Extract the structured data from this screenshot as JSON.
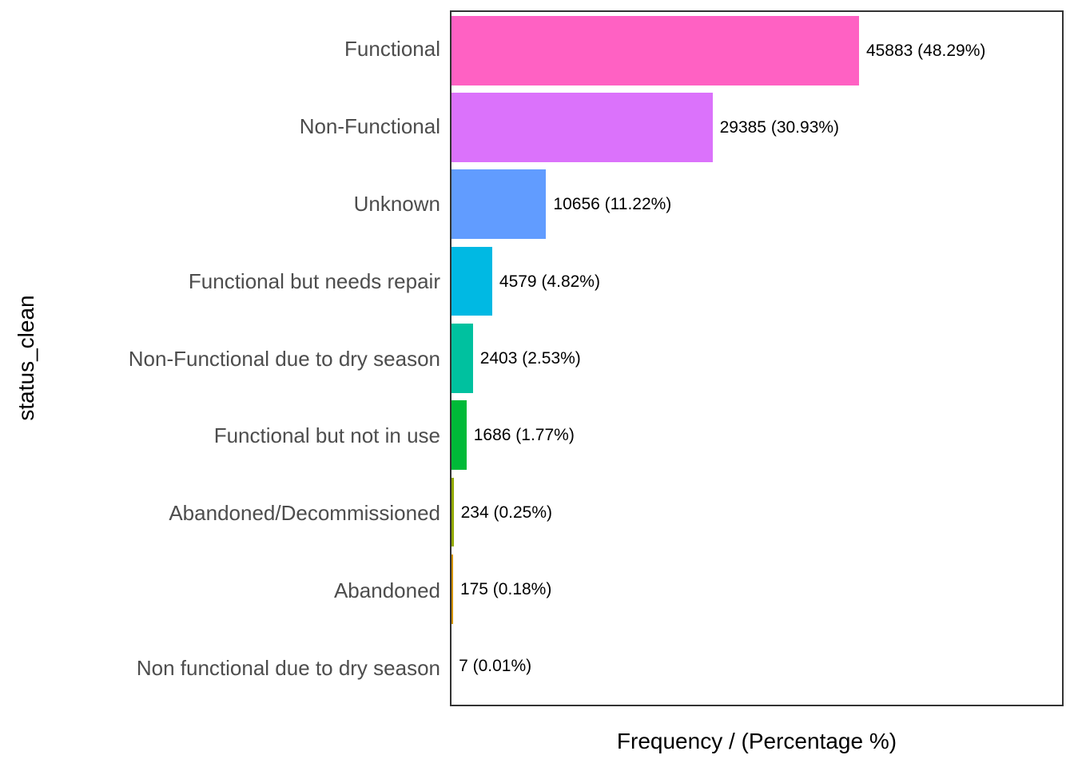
{
  "chart_data": {
    "type": "bar",
    "orientation": "horizontal",
    "xlabel": "Frequency / (Percentage %)",
    "ylabel": "status_clean",
    "xlim": [
      0,
      68740
    ],
    "grid": false,
    "legend": "none",
    "categories": [
      "Functional",
      "Non-Functional",
      "Unknown",
      "Functional but needs repair",
      "Non-Functional due to dry season",
      "Functional but not in use",
      "Abandoned/Decommissioned",
      "Abandoned",
      "Non functional due to dry season"
    ],
    "values": [
      45883,
      29385,
      10656,
      4579,
      2403,
      1686,
      234,
      175,
      7
    ],
    "percentages": [
      48.29,
      30.93,
      11.22,
      4.82,
      2.53,
      1.77,
      0.25,
      0.18,
      0.01
    ],
    "bar_labels": [
      "45883 (48.29%)",
      "29385 (30.93%)",
      "10656 (11.22%)",
      "4579 (4.82%)",
      "2403 (2.53%)",
      "1686 (1.77%)",
      "234 (0.25%)",
      "175 (0.18%)",
      "7 (0.01%)"
    ],
    "bar_colors": [
      "#FF61C3",
      "#DB72FB",
      "#619CFF",
      "#00B9E3",
      "#00C19F",
      "#00BA38",
      "#93AA00",
      "#D39200",
      "#F8766D"
    ],
    "colors": {
      "axis_text": "#4D4D4D",
      "axis_title": "#000000",
      "bar_label_text": "#000000",
      "panel_border": "#333333",
      "background": "#FFFFFF"
    }
  }
}
